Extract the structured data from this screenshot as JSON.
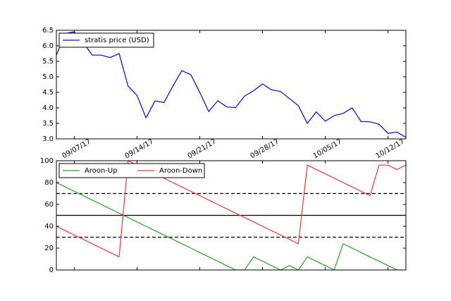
{
  "chart_data": [
    {
      "type": "line",
      "x": [
        "2017-09-05",
        "2017-09-06",
        "2017-09-07",
        "2017-09-08",
        "2017-09-09",
        "2017-09-10",
        "2017-09-11",
        "2017-09-12",
        "2017-09-13",
        "2017-09-14",
        "2017-09-15",
        "2017-09-16",
        "2017-09-17",
        "2017-09-18",
        "2017-09-19",
        "2017-09-20",
        "2017-09-21",
        "2017-09-22",
        "2017-09-23",
        "2017-09-24",
        "2017-09-25",
        "2017-09-26",
        "2017-09-27",
        "2017-09-28",
        "2017-09-29",
        "2017-09-30",
        "2017-10-01",
        "2017-10-02",
        "2017-10-03",
        "2017-10-04",
        "2017-10-05",
        "2017-10-06",
        "2017-10-07",
        "2017-10-08",
        "2017-10-09",
        "2017-10-10",
        "2017-10-11",
        "2017-10-12",
        "2017-10-13",
        "2017-10-14"
      ],
      "xlim": [
        "2017-09-05",
        "2017-10-14"
      ],
      "xticks": [
        {
          "value": "2017-09-07",
          "label": "09/07/17"
        },
        {
          "value": "2017-09-14",
          "label": "09/14/17"
        },
        {
          "value": "2017-09-21",
          "label": "09/21/17"
        },
        {
          "value": "2017-09-28",
          "label": "09/28/17"
        },
        {
          "value": "2017-10-05",
          "label": "10/05/17"
        },
        {
          "value": "2017-10-12",
          "label": "10/12/17"
        }
      ],
      "ylim": [
        3.0,
        6.5
      ],
      "yticks": [
        {
          "value": 3.0,
          "label": "3.0"
        },
        {
          "value": 3.5,
          "label": "3.5"
        },
        {
          "value": 4.0,
          "label": "4.0"
        },
        {
          "value": 4.5,
          "label": "4.5"
        },
        {
          "value": 5.0,
          "label": "5.0"
        },
        {
          "value": 5.5,
          "label": "5.5"
        },
        {
          "value": 6.0,
          "label": "6.0"
        },
        {
          "value": 6.5,
          "label": "6.5"
        }
      ],
      "legend": "upper left",
      "series": [
        {
          "name": "stratis price (USD)",
          "color": "#0000ff",
          "values": [
            5.7,
            6.4,
            6.45,
            6.1,
            5.7,
            5.7,
            5.62,
            5.75,
            4.7,
            4.4,
            3.68,
            4.22,
            4.17,
            4.7,
            5.2,
            5.07,
            4.5,
            3.88,
            4.23,
            4.03,
            4.01,
            4.38,
            4.55,
            4.77,
            4.58,
            4.53,
            4.3,
            4.07,
            3.5,
            3.87,
            3.57,
            3.75,
            3.82,
            4.0,
            3.56,
            3.55,
            3.47,
            3.18,
            3.22,
            3.05
          ]
        }
      ]
    },
    {
      "type": "line",
      "ylim": [
        0,
        100
      ],
      "yticks": [
        0,
        20,
        40,
        60,
        80,
        100
      ],
      "legend": "upper left",
      "reference_lines": [
        {
          "value": 70,
          "dashed": true
        },
        {
          "value": 50,
          "dashed": false
        },
        {
          "value": 30,
          "dashed": true
        }
      ],
      "series": [
        {
          "name": "Aroon-Up",
          "color": "#2ca02c",
          "values": [
            80,
            76,
            72,
            68,
            64,
            60,
            56,
            52,
            48,
            44,
            40,
            36,
            32,
            28,
            24,
            20,
            16,
            12,
            8,
            4,
            0,
            0,
            12,
            8,
            4,
            0,
            4,
            0,
            12,
            8,
            4,
            0,
            24,
            20,
            16,
            12,
            8,
            4,
            0,
            0
          ]
        },
        {
          "name": "Aroon-Down",
          "color": "#ff3333",
          "values": [
            40,
            36,
            32,
            28,
            24,
            20,
            16,
            12,
            100,
            96,
            92,
            88,
            84,
            80,
            76,
            72,
            68,
            64,
            60,
            56,
            52,
            48,
            44,
            40,
            36,
            32,
            28,
            24,
            96,
            92,
            88,
            84,
            80,
            76,
            72,
            68,
            96,
            96,
            92,
            96
          ]
        }
      ]
    }
  ]
}
